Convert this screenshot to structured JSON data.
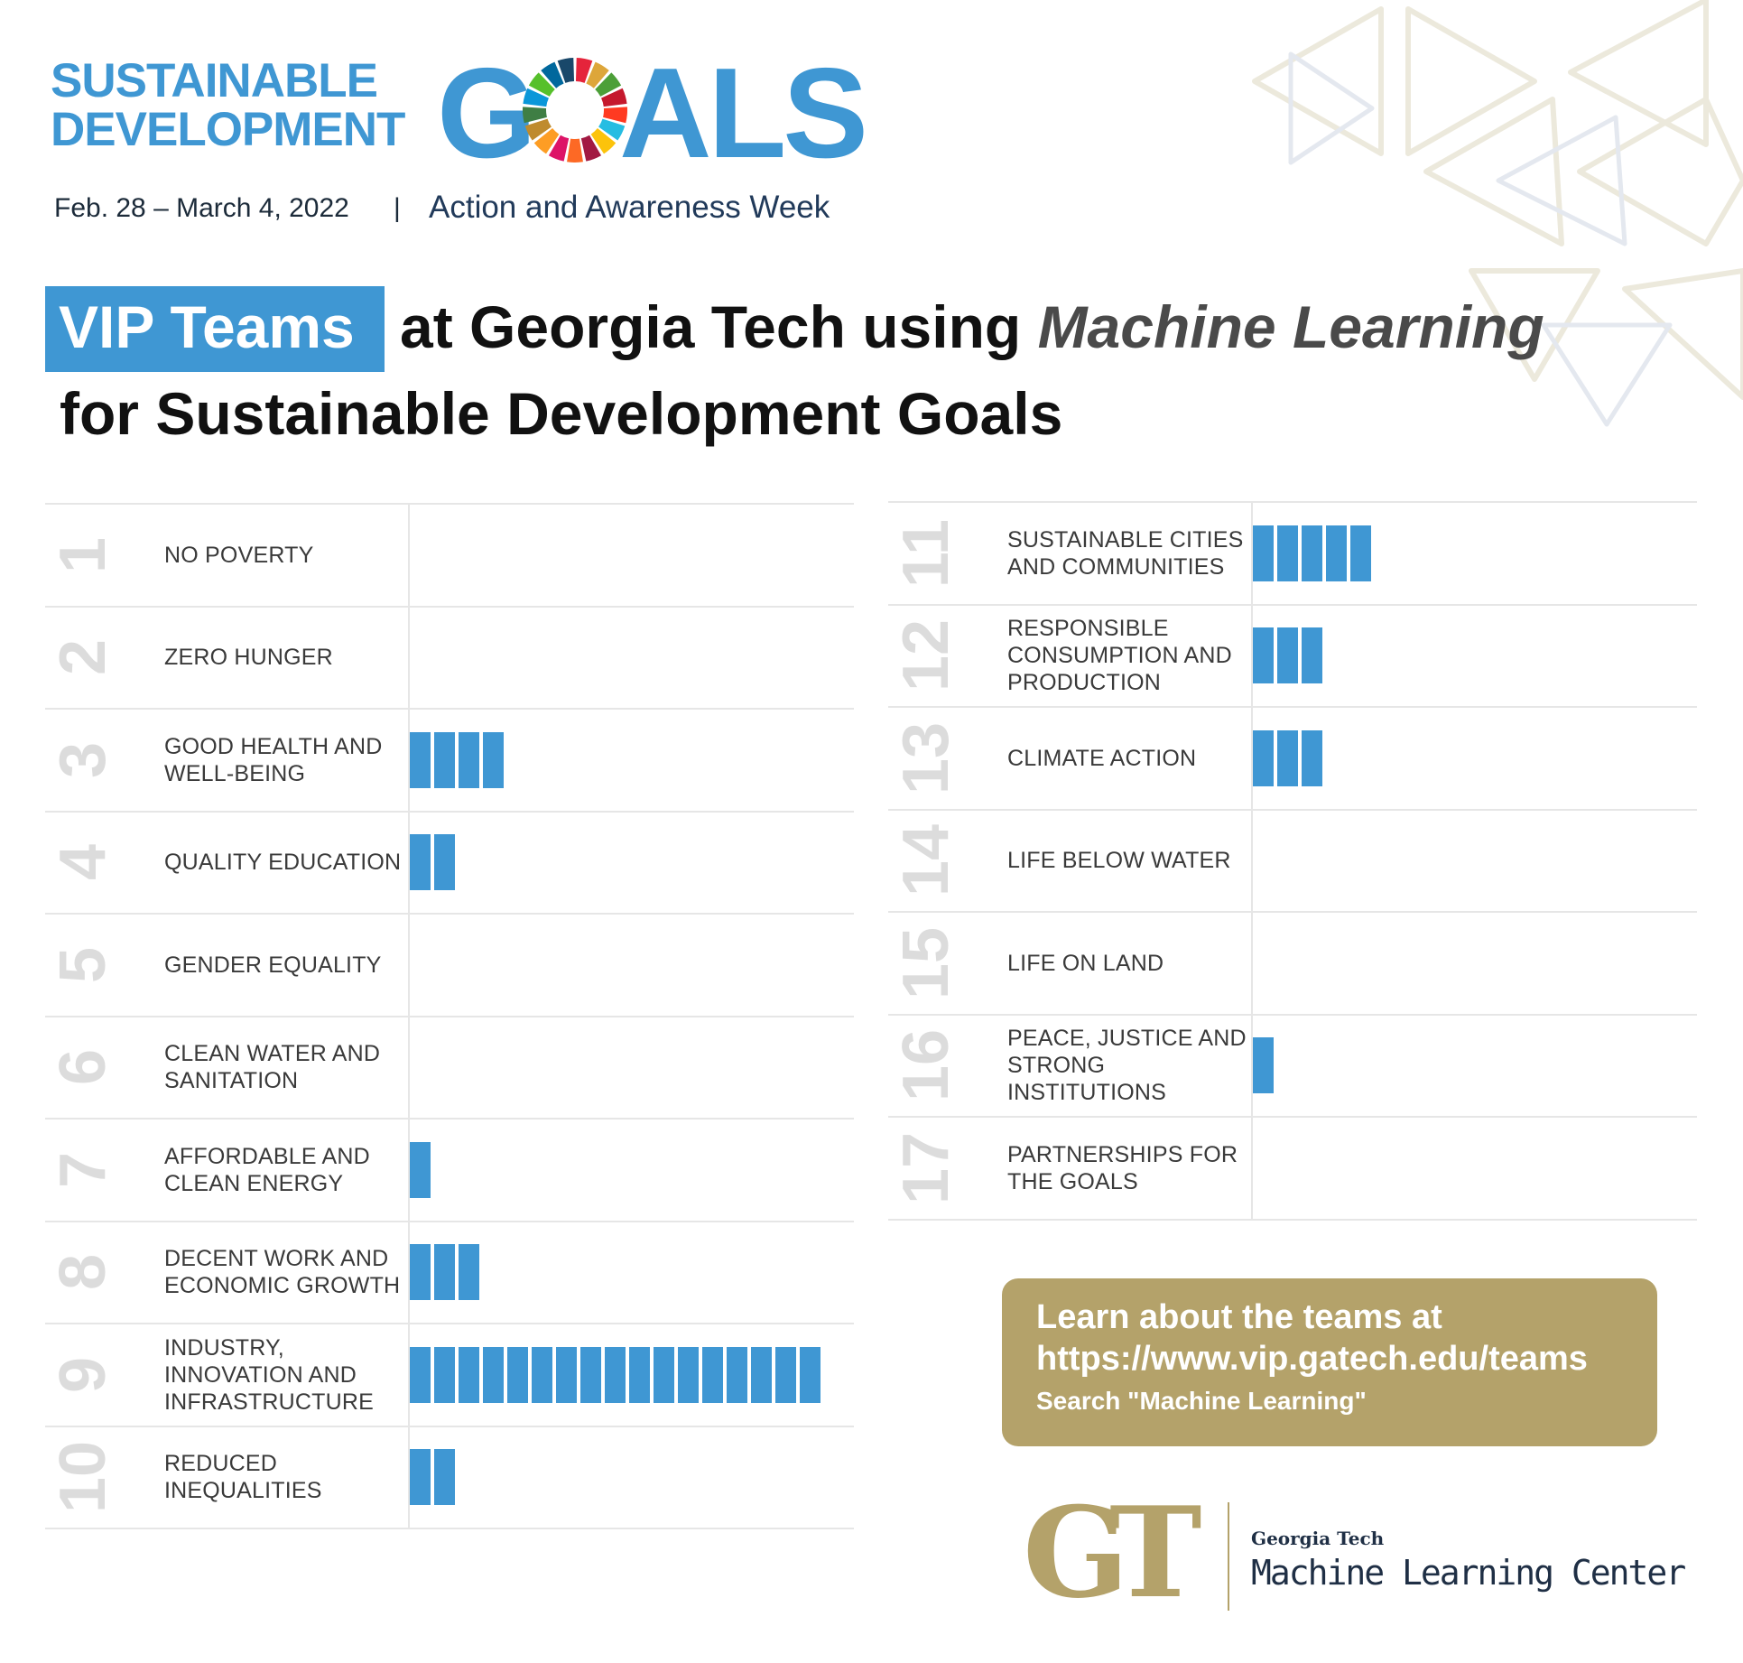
{
  "logo": {
    "line1": "SUSTAINABLE",
    "line2": "DEVELOPMENT",
    "goals_g": "G",
    "goals_als": "ALS",
    "wheel_colors": [
      "#e5243b",
      "#dda63a",
      "#4c9f38",
      "#c5192d",
      "#ff3a21",
      "#26bde2",
      "#fcc30b",
      "#a21942",
      "#fd6925",
      "#dd1367",
      "#fd9d24",
      "#bf8b2e",
      "#3f7e44",
      "#0a97d9",
      "#56c02b",
      "#00689d",
      "#19486a"
    ]
  },
  "header": {
    "dates": "Feb. 28 – March 4, 2022",
    "separator": "|",
    "tagline": "Action and Awareness Week"
  },
  "title": {
    "badge": "VIP Teams",
    "line1_plain": "at Georgia Tech using ",
    "line1_em": "Machine Learning",
    "line2": "for Sustainable Development Goals"
  },
  "colors": {
    "accent": "#3f97d3",
    "gold": "#b4a26a",
    "number_gray": "#dcdcdc"
  },
  "chart_data": {
    "type": "bar",
    "orientation": "horizontal",
    "unit_glyph": "stacked blocks (1 block = 1 team)",
    "categories": [
      "1",
      "2",
      "3",
      "4",
      "5",
      "6",
      "7",
      "8",
      "9",
      "10",
      "11",
      "12",
      "13",
      "14",
      "15",
      "16",
      "17"
    ],
    "goals": [
      {
        "num": "1",
        "label": "NO POVERTY",
        "value": 0
      },
      {
        "num": "2",
        "label": "ZERO HUNGER",
        "value": 0
      },
      {
        "num": "3",
        "label": "GOOD HEALTH AND\nWELL-BEING",
        "value": 4
      },
      {
        "num": "4",
        "label": "QUALITY EDUCATION",
        "value": 2
      },
      {
        "num": "5",
        "label": "GENDER EQUALITY",
        "value": 0
      },
      {
        "num": "6",
        "label": "CLEAN WATER AND\nSANITATION",
        "value": 0
      },
      {
        "num": "7",
        "label": "AFFORDABLE AND\nCLEAN ENERGY",
        "value": 1
      },
      {
        "num": "8",
        "label": "DECENT WORK AND\nECONOMIC GROWTH",
        "value": 3
      },
      {
        "num": "9",
        "label": "INDUSTRY,\nINNOVATION AND\nINFRASTRUCTURE",
        "value": 17
      },
      {
        "num": "10",
        "label": "REDUCED\nINEQUALITIES",
        "value": 2
      },
      {
        "num": "11",
        "label": "SUSTAINABLE CITIES\nAND COMMUNITIES",
        "value": 5
      },
      {
        "num": "12",
        "label": "RESPONSIBLE\nCONSUMPTION AND\nPRODUCTION",
        "value": 3
      },
      {
        "num": "13",
        "label": "CLIMATE ACTION",
        "value": 3
      },
      {
        "num": "14",
        "label": "LIFE BELOW WATER",
        "value": 0
      },
      {
        "num": "15",
        "label": "LIFE ON LAND",
        "value": 0
      },
      {
        "num": "16",
        "label": "PEACE, JUSTICE AND\nSTRONG\nINSTITUTIONS",
        "value": 1
      },
      {
        "num": "17",
        "label": "PARTNERSHIPS FOR\nTHE GOALS",
        "value": 0
      }
    ],
    "values": [
      0,
      0,
      4,
      2,
      0,
      0,
      1,
      3,
      17,
      2,
      5,
      3,
      3,
      0,
      0,
      1,
      0
    ],
    "xlim": [
      0,
      17
    ],
    "grid": false,
    "legend": "none"
  },
  "cta": {
    "line1": "Learn about the teams at",
    "line2": "https://www.vip.gatech.edu/teams",
    "line3": "Search \"Machine Learning\""
  },
  "footer": {
    "monogram": "GT",
    "org": "Georgia Tech",
    "center": "Machine Learning Center"
  }
}
